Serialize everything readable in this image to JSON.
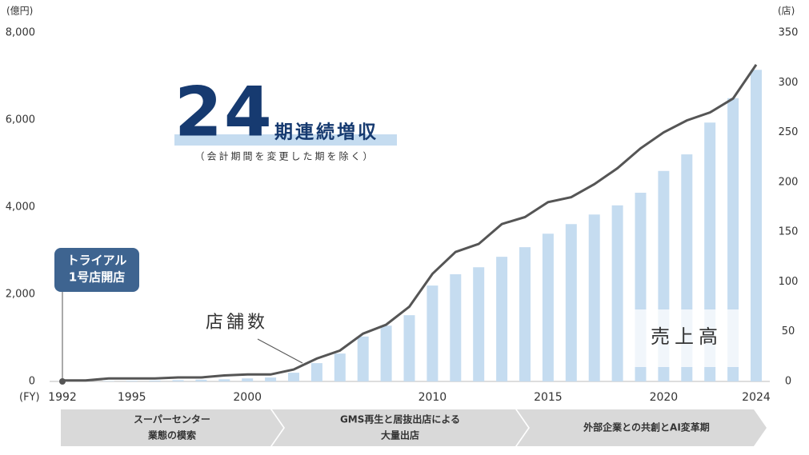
{
  "chart_data": {
    "type": "bar_line",
    "y_unit": "(億円)",
    "y2_unit": "(店)",
    "x_unit": "(FY)",
    "categories": [
      "1992",
      null,
      null,
      "1995",
      null,
      null,
      null,
      null,
      "2000",
      null,
      null,
      null,
      null,
      null,
      null,
      null,
      "2010",
      null,
      null,
      null,
      null,
      "2015",
      null,
      null,
      null,
      null,
      "2020",
      null,
      null,
      null,
      "2024"
    ],
    "series": [
      {
        "name": "売上高",
        "color": "#c5dcf0",
        "axis": "y",
        "kind": "bar",
        "values": [
          2,
          5,
          10,
          15,
          20,
          30,
          40,
          50,
          70,
          90,
          200,
          420,
          640,
          1030,
          1280,
          1520,
          2200,
          2460,
          2620,
          2860,
          3080,
          3390,
          3610,
          3830,
          4040,
          4330,
          4830,
          5210,
          5940,
          6500,
          7150
        ]
      },
      {
        "name": "店舗数",
        "color": "#555555",
        "axis": "y2",
        "kind": "line",
        "values": [
          1,
          1,
          3,
          3,
          3,
          4,
          4,
          6,
          7,
          7,
          12,
          23,
          31,
          48,
          57,
          75,
          108,
          130,
          138,
          158,
          165,
          180,
          185,
          198,
          214,
          234,
          250,
          262,
          270,
          284,
          318
        ]
      }
    ],
    "ylim": [
      0,
      8000
    ],
    "yticks": [
      0,
      {
        "value": 2000,
        "label": "2,000"
      },
      {
        "value": 4000,
        "label": "4,000"
      },
      {
        "value": 6000,
        "label": "6,000"
      },
      {
        "value": 8000,
        "label": "8,000"
      }
    ],
    "y2lim": [
      0,
      350
    ],
    "y2ticks": [
      0,
      50,
      100,
      150,
      200,
      250,
      300,
      350
    ],
    "headline_number": "24",
    "headline_text": "期連続増収",
    "headline_note": "（会計期間を変更した期を除く）",
    "callout": [
      "トライアル",
      "1号店開店"
    ],
    "phases": [
      [
        "スーパーセンター",
        "業態の模索"
      ],
      [
        "GMS再生と居抜出店による",
        "大量出店"
      ],
      [
        "外部企業との共創とAI変革期"
      ]
    ]
  }
}
